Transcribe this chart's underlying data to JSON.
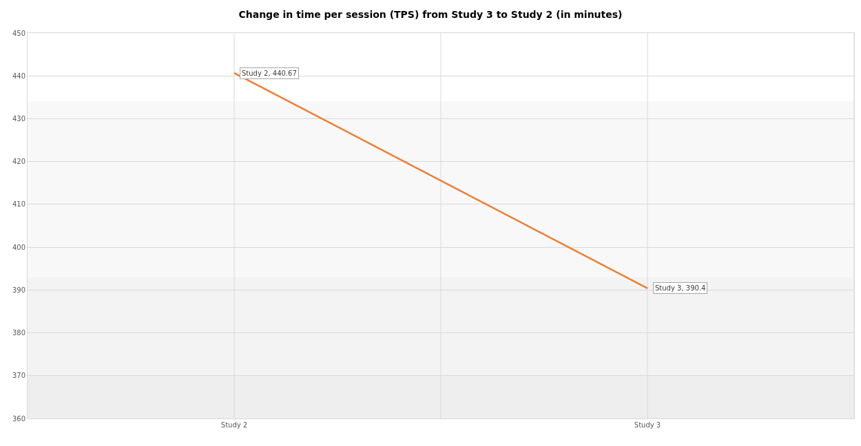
{
  "chart_data": {
    "type": "line",
    "title": "Change in time per session (TPS) from Study 3 to Study 2 (in minutes)",
    "categories": [
      "Study 2",
      "Study 3"
    ],
    "series": [
      {
        "color": "#ed7d31",
        "values": [
          440.67,
          390.4
        ],
        "value_labels": [
          "Study 2, 440.67",
          "Study 3, 390.4"
        ]
      }
    ],
    "ylim": [
      360,
      450
    ],
    "yticks": [
      360,
      370,
      380,
      390,
      400,
      410,
      420,
      430,
      440,
      450
    ],
    "bands": [
      {
        "axis": "y",
        "from": 360,
        "to": 370,
        "color": "#eeeeee"
      },
      {
        "axis": "y",
        "from": 370,
        "to": 393,
        "color": "#f3f3f3"
      },
      {
        "axis": "y",
        "from": 393,
        "to": 434,
        "color": "#f8f8f8"
      }
    ],
    "grid": true,
    "marker": "none",
    "line_style": "solid"
  }
}
